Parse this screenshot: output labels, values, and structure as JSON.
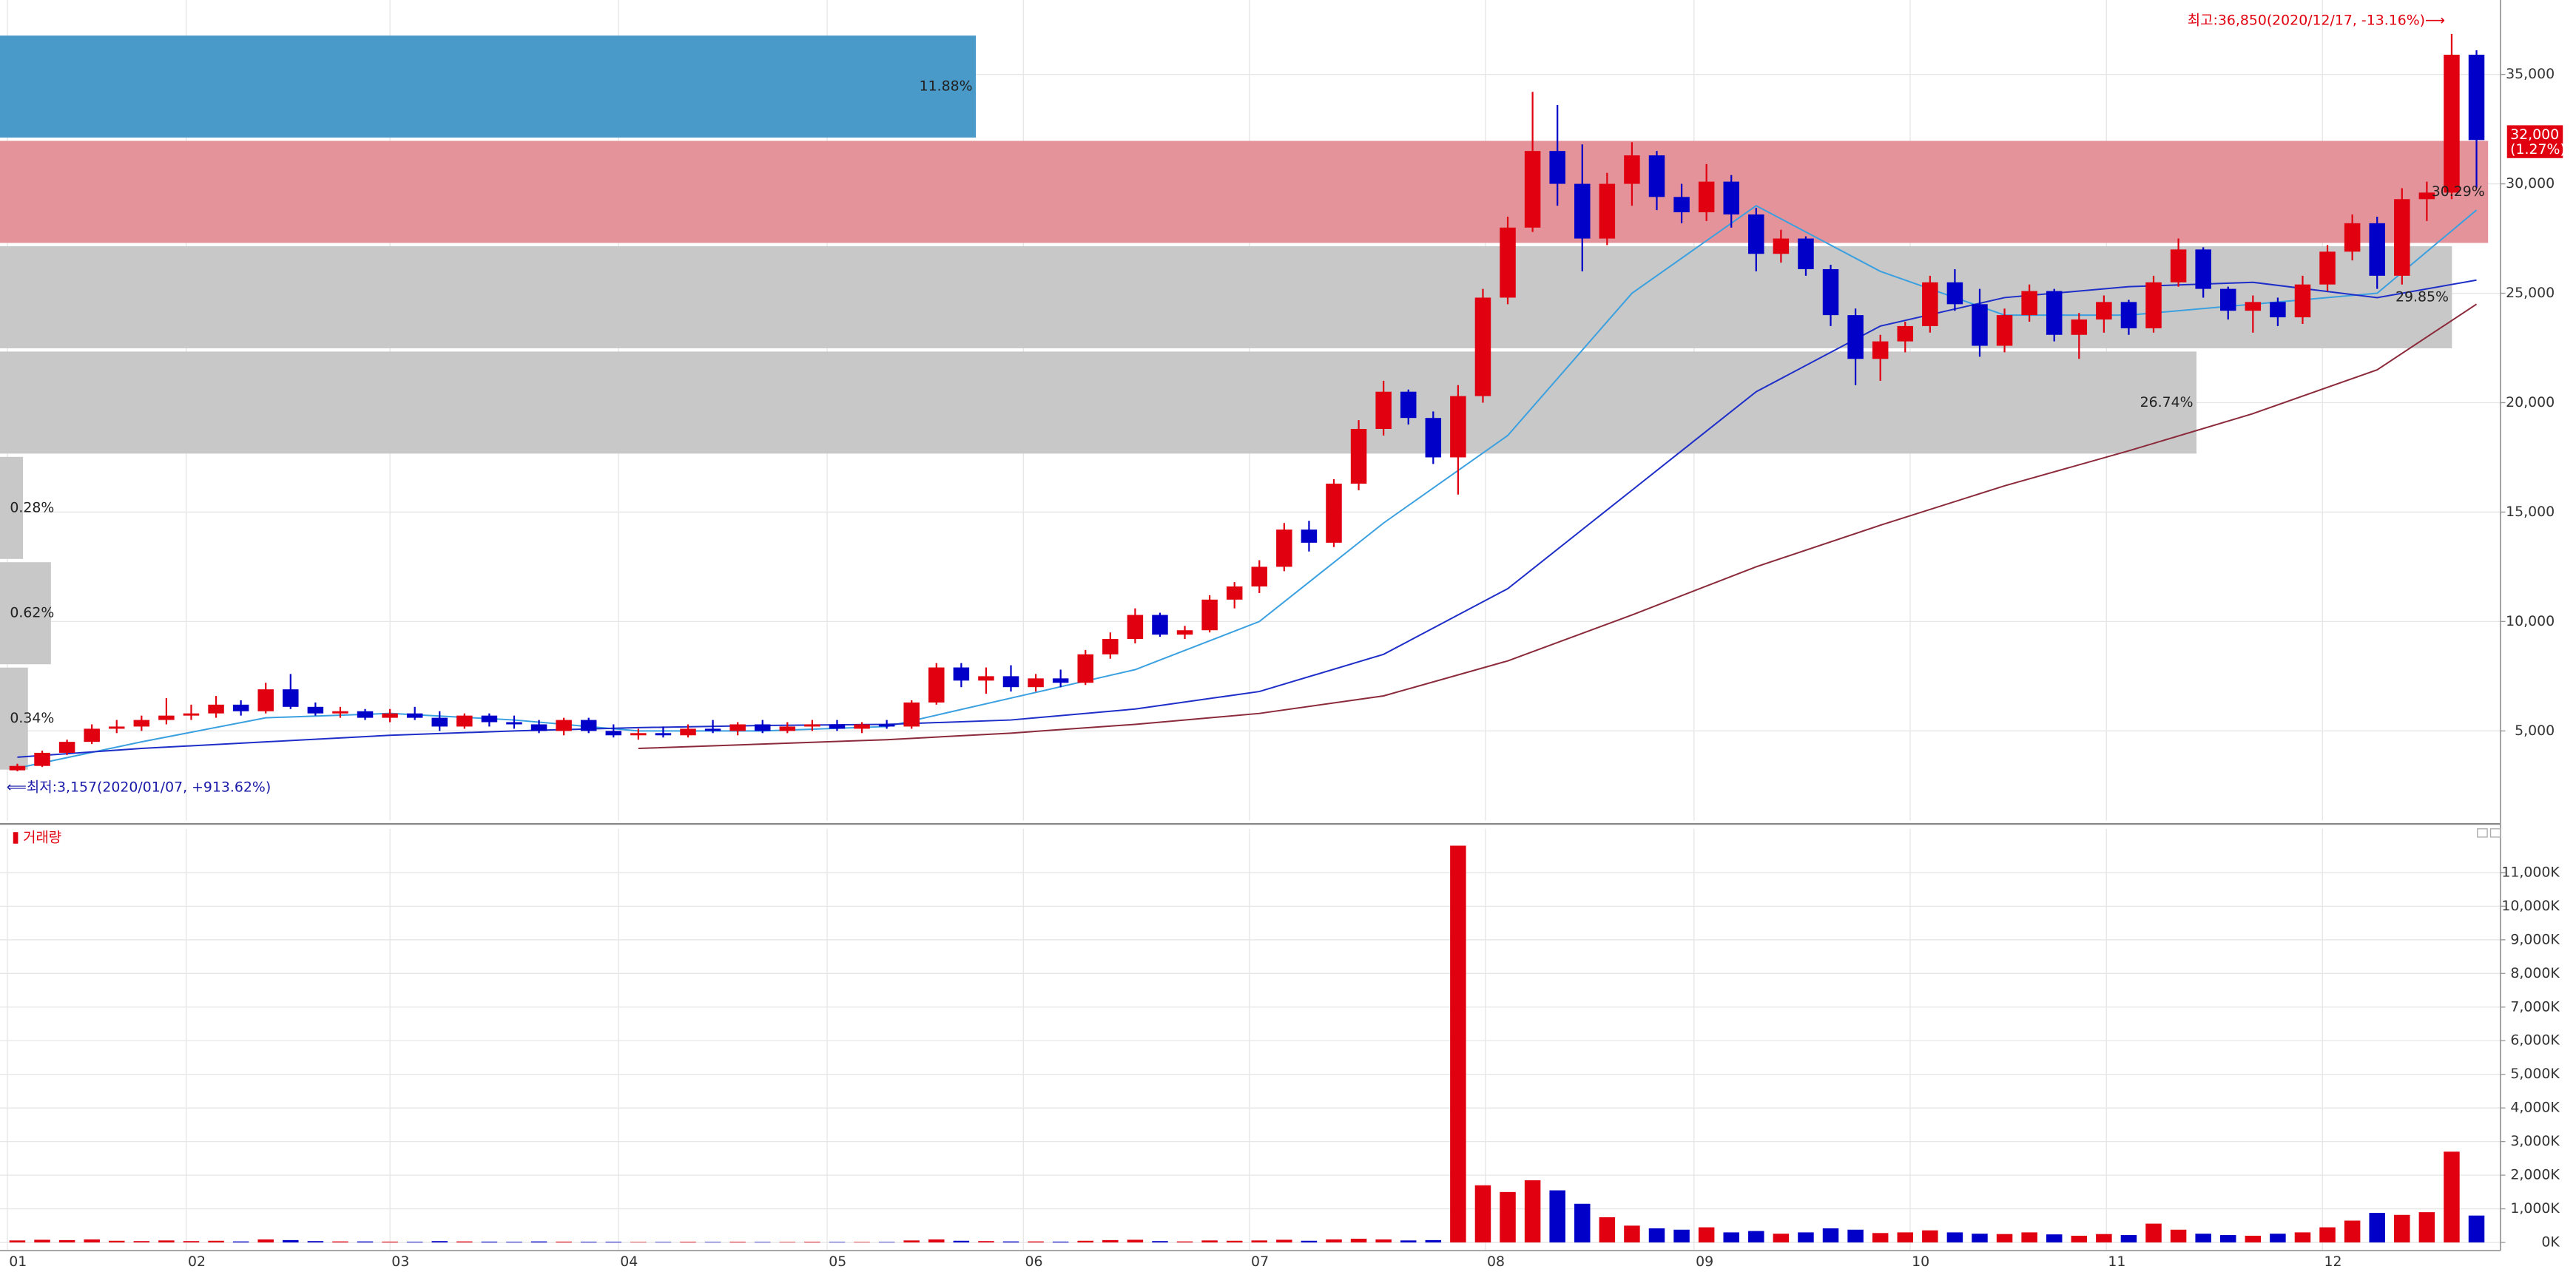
{
  "chart_data": [
    {
      "type": "candlestick",
      "ohlc": [
        [
          3200,
          3500,
          3157,
          3400
        ],
        [
          3400,
          4100,
          3350,
          4000
        ],
        [
          4000,
          4600,
          3900,
          4500
        ],
        [
          4500,
          5300,
          4400,
          5100
        ],
        [
          5100,
          5500,
          4900,
          5200
        ],
        [
          5200,
          5700,
          5000,
          5500
        ],
        [
          5500,
          6500,
          5300,
          5700
        ],
        [
          5700,
          6200,
          5500,
          5800
        ],
        [
          5800,
          6600,
          5600,
          6200
        ],
        [
          6200,
          6400,
          5700,
          5900
        ],
        [
          5900,
          7200,
          5800,
          6900
        ],
        [
          6900,
          7600,
          6000,
          6100
        ],
        [
          6100,
          6300,
          5700,
          5800
        ],
        [
          5800,
          6100,
          5600,
          5900
        ],
        [
          5900,
          6000,
          5500,
          5600
        ],
        [
          5600,
          6000,
          5400,
          5800
        ],
        [
          5800,
          6100,
          5500,
          5600
        ],
        [
          5600,
          5900,
          5000,
          5200
        ],
        [
          5200,
          5800,
          5100,
          5700
        ],
        [
          5700,
          5800,
          5200,
          5400
        ],
        [
          5400,
          5700,
          5100,
          5300
        ],
        [
          5300,
          5500,
          4900,
          5000
        ],
        [
          5000,
          5600,
          4800,
          5500
        ],
        [
          5500,
          5600,
          4900,
          5000
        ],
        [
          5000,
          5300,
          4700,
          4800
        ],
        [
          4800,
          5100,
          4600,
          4900
        ],
        [
          4900,
          5200,
          4700,
          4800
        ],
        [
          4800,
          5300,
          4700,
          5100
        ],
        [
          5100,
          5500,
          4900,
          5000
        ],
        [
          5000,
          5400,
          4800,
          5300
        ],
        [
          5300,
          5500,
          4900,
          5000
        ],
        [
          5000,
          5400,
          4900,
          5200
        ],
        [
          5200,
          5500,
          5000,
          5300
        ],
        [
          5300,
          5500,
          5000,
          5100
        ],
        [
          5100,
          5400,
          4900,
          5300
        ],
        [
          5300,
          5500,
          5100,
          5200
        ],
        [
          5200,
          6400,
          5100,
          6300
        ],
        [
          6300,
          8100,
          6200,
          7900
        ],
        [
          7900,
          8100,
          7000,
          7300
        ],
        [
          7300,
          7900,
          6700,
          7500
        ],
        [
          7500,
          8000,
          6800,
          7000
        ],
        [
          7000,
          7600,
          6800,
          7400
        ],
        [
          7400,
          7800,
          7000,
          7200
        ],
        [
          7200,
          8700,
          7100,
          8500
        ],
        [
          8500,
          9500,
          8300,
          9200
        ],
        [
          9200,
          10600,
          9000,
          10300
        ],
        [
          10300,
          10400,
          9300,
          9400
        ],
        [
          9400,
          9800,
          9200,
          9600
        ],
        [
          9600,
          11200,
          9500,
          11000
        ],
        [
          11000,
          11800,
          10600,
          11600
        ],
        [
          11600,
          12800,
          11300,
          12500
        ],
        [
          12500,
          14500,
          12300,
          14200
        ],
        [
          14200,
          14600,
          13200,
          13600
        ],
        [
          13600,
          16500,
          13400,
          16300
        ],
        [
          16300,
          19200,
          16000,
          18800
        ],
        [
          18800,
          21000,
          18500,
          20500
        ],
        [
          20500,
          20600,
          19000,
          19300
        ],
        [
          19300,
          19600,
          17200,
          17500
        ],
        [
          17500,
          20800,
          15800,
          20300
        ],
        [
          20300,
          25200,
          20000,
          24800
        ],
        [
          24800,
          28500,
          24500,
          28000
        ],
        [
          28000,
          34200,
          27800,
          31500
        ],
        [
          31500,
          33600,
          29000,
          30000
        ],
        [
          30000,
          31800,
          26000,
          27500
        ],
        [
          27500,
          30500,
          27200,
          30000
        ],
        [
          30000,
          31900,
          29000,
          31300
        ],
        [
          31300,
          31500,
          28800,
          29400
        ],
        [
          29400,
          30000,
          28200,
          28700
        ],
        [
          28700,
          30900,
          28300,
          30100
        ],
        [
          30100,
          30400,
          28000,
          28600
        ],
        [
          28600,
          28900,
          26000,
          26800
        ],
        [
          26800,
          27900,
          26400,
          27500
        ],
        [
          27500,
          27600,
          25800,
          26100
        ],
        [
          26100,
          26300,
          23500,
          24000
        ],
        [
          24000,
          24300,
          20800,
          22000
        ],
        [
          22000,
          23100,
          21000,
          22800
        ],
        [
          22800,
          23700,
          22300,
          23500
        ],
        [
          23500,
          25800,
          23200,
          25500
        ],
        [
          25500,
          26100,
          24200,
          24500
        ],
        [
          24500,
          25200,
          22100,
          22600
        ],
        [
          22600,
          24300,
          22300,
          24000
        ],
        [
          24000,
          25400,
          23700,
          25100
        ],
        [
          25100,
          25200,
          22800,
          23100
        ],
        [
          23100,
          24100,
          22000,
          23800
        ],
        [
          23800,
          24900,
          23200,
          24600
        ],
        [
          24600,
          24700,
          23100,
          23400
        ],
        [
          23400,
          25800,
          23200,
          25500
        ],
        [
          25500,
          27500,
          25300,
          27000
        ],
        [
          27000,
          27100,
          24800,
          25200
        ],
        [
          25200,
          25300,
          23800,
          24200
        ],
        [
          24200,
          24900,
          23200,
          24600
        ],
        [
          24600,
          24800,
          23500,
          23900
        ],
        [
          23900,
          25800,
          23600,
          25400
        ],
        [
          25400,
          27200,
          25100,
          26900
        ],
        [
          26900,
          28600,
          26500,
          28200
        ],
        [
          28200,
          28500,
          25200,
          25800
        ],
        [
          25800,
          29800,
          25400,
          29300
        ],
        [
          29300,
          30100,
          28300,
          29600
        ],
        [
          29600,
          36850,
          29300,
          35900
        ],
        [
          35900,
          36100,
          29800,
          32000
        ]
      ],
      "up_color": "#e0000f",
      "down_color": "#0000c8",
      "xlim": [
        0,
        100
      ],
      "xticks": [
        {
          "value": 0.1,
          "label": "01"
        },
        {
          "value": 7.3,
          "label": "02"
        },
        {
          "value": 15.5,
          "label": "03"
        },
        {
          "value": 24.7,
          "label": "04"
        },
        {
          "value": 33.1,
          "label": "05"
        },
        {
          "value": 41,
          "label": "06"
        },
        {
          "value": 50.1,
          "label": "07"
        },
        {
          "value": 59.6,
          "label": "08"
        },
        {
          "value": 68,
          "label": "09"
        },
        {
          "value": 76.7,
          "label": "10"
        },
        {
          "value": 84.6,
          "label": "11"
        },
        {
          "value": 93.3,
          "label": "12"
        }
      ],
      "ylim": [
        900,
        38400
      ],
      "yticks": [
        {
          "value": 5000,
          "label": "5,000"
        },
        {
          "value": 10000,
          "label": "10,000"
        },
        {
          "value": 15000,
          "label": "15,000"
        },
        {
          "value": 20000,
          "label": "20,000"
        },
        {
          "value": 25000,
          "label": "25,000"
        },
        {
          "value": 30000,
          "label": "30,000"
        },
        {
          "value": 35000,
          "label": "35,000"
        }
      ],
      "grid": true,
      "lines": [
        {
          "color": "#3aa0e0",
          "x": [
            0,
            5,
            10,
            15,
            20,
            25,
            30,
            35,
            40,
            45,
            50,
            55,
            60,
            65,
            70,
            75,
            80,
            85,
            90,
            95,
            99
          ],
          "values": [
            3300,
            4500,
            5600,
            5800,
            5500,
            5000,
            5000,
            5200,
            6500,
            7800,
            10000,
            14500,
            18500,
            25000,
            29000,
            26000,
            24000,
            24000,
            24500,
            25000,
            28800
          ]
        },
        {
          "color": "#1e2ec8",
          "x": [
            0,
            5,
            10,
            15,
            20,
            25,
            30,
            35,
            40,
            45,
            50,
            55,
            60,
            65,
            70,
            75,
            80,
            85,
            90,
            95,
            99
          ],
          "values": [
            3800,
            4200,
            4500,
            4800,
            5000,
            5150,
            5250,
            5300,
            5500,
            6000,
            6800,
            8500,
            11500,
            16000,
            20500,
            23500,
            24800,
            25300,
            25500,
            24800,
            25600
          ]
        },
        {
          "color": "#8b2a3a",
          "x": [
            25,
            30,
            35,
            40,
            45,
            50,
            55,
            60,
            65,
            70,
            75,
            80,
            85,
            90,
            95,
            99
          ],
          "values": [
            4200,
            4400,
            4600,
            4900,
            5300,
            5800,
            6600,
            8200,
            10300,
            12500,
            14400,
            16200,
            17800,
            19500,
            21500,
            24500
          ]
        }
      ],
      "profile": {
        "edges": [
          3157,
          7970,
          12784,
          17598,
          22411,
          27225,
          32038,
          36850
        ],
        "values": [
          0.34,
          0.62,
          0.28,
          26.74,
          29.85,
          30.29,
          11.88
        ],
        "value_labels": [
          "0.34%",
          "0.62%",
          "0.28%",
          "26.74%",
          "29.85%",
          "30.29%",
          "11.88%"
        ],
        "colors": [
          "#c8c8c8",
          "#c8c8c8",
          "#c8c8c8",
          "#c8c8c8",
          "#c8c8c8",
          "#e4939a",
          "#4a9ac9"
        ],
        "xlim": [
          0,
          30.4
        ]
      },
      "high_note": "최고:36,850(2020/12/17, -13.16%)⟶",
      "low_note": "⟸최저:3,157(2020/01/07, +913.62%)",
      "last_price_label": "32,000",
      "last_change_label": "(1.27%)"
    },
    {
      "type": "bar",
      "title": "거래량",
      "values": [
        60,
        80,
        70,
        90,
        50,
        40,
        60,
        40,
        50,
        30,
        90,
        70,
        40,
        30,
        30,
        25,
        20,
        40,
        30,
        25,
        20,
        30,
        25,
        20,
        20,
        15,
        15,
        20,
        15,
        20,
        15,
        15,
        20,
        15,
        15,
        15,
        60,
        90,
        50,
        40,
        30,
        30,
        25,
        50,
        70,
        80,
        40,
        30,
        60,
        50,
        60,
        80,
        50,
        90,
        110,
        90,
        60,
        70,
        11800,
        1700,
        1500,
        1850,
        1550,
        1150,
        750,
        500,
        420,
        380,
        450,
        300,
        340,
        260,
        300,
        420,
        380,
        280,
        300,
        360,
        300,
        260,
        250,
        300,
        240,
        200,
        250,
        220,
        560,
        380,
        260,
        220,
        200,
        260,
        300,
        450,
        650,
        880,
        820,
        900,
        2700,
        800
      ],
      "ylim": [
        0,
        12300
      ],
      "yticks": [
        {
          "value": 0,
          "label": "0K"
        },
        {
          "value": 1000,
          "label": "1,000K"
        },
        {
          "value": 2000,
          "label": "2,000K"
        },
        {
          "value": 3000,
          "label": "3,000K"
        },
        {
          "value": 4000,
          "label": "4,000K"
        },
        {
          "value": 5000,
          "label": "5,000K"
        },
        {
          "value": 6000,
          "label": "6,000K"
        },
        {
          "value": 7000,
          "label": "7,000K"
        },
        {
          "value": 8000,
          "label": "8,000K"
        },
        {
          "value": 9000,
          "label": "9,000K"
        },
        {
          "value": 10000,
          "label": "10,000K"
        },
        {
          "value": 11000,
          "label": "11,000K"
        }
      ],
      "grid": true
    }
  ]
}
